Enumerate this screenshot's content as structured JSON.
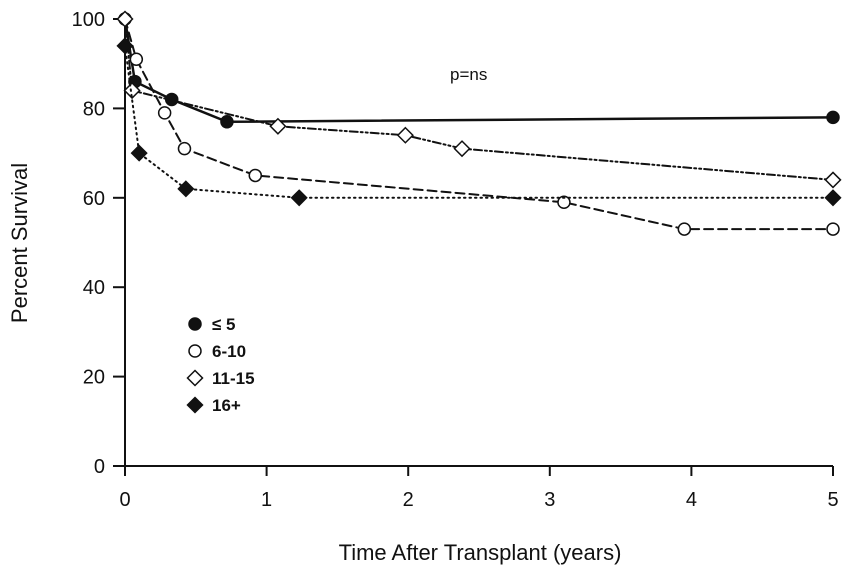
{
  "chart_data": {
    "type": "line",
    "title": "",
    "xlabel": "Time After Transplant (years)",
    "ylabel": "Percent Survival",
    "xlim": [
      0,
      5
    ],
    "ylim": [
      0,
      100
    ],
    "xticks": [
      0,
      1,
      2,
      3,
      4,
      5
    ],
    "yticks": [
      0,
      20,
      40,
      60,
      80,
      100
    ],
    "x_tick_labels": [
      "0",
      "1",
      "2",
      "3",
      "4",
      "5"
    ],
    "y_tick_labels": [
      "0",
      "20",
      "40",
      "60",
      "80",
      "100"
    ],
    "grid": false,
    "legend_position": "lower-left",
    "annotation": "p=ns",
    "series": [
      {
        "name": "≤ 5",
        "marker": "filled-circle",
        "line_style": "solid",
        "color": "#111111",
        "x": [
          0,
          0.07,
          0.33,
          0.72,
          5.0
        ],
        "y": [
          100,
          86,
          82,
          77,
          78
        ]
      },
      {
        "name": "6-10",
        "marker": "open-circle",
        "line_style": "dashed",
        "color": "#111111",
        "x": [
          0,
          0.08,
          0.28,
          0.42,
          0.92,
          3.1,
          3.95,
          5.0
        ],
        "y": [
          100,
          91,
          79,
          71,
          65,
          59,
          53,
          53
        ]
      },
      {
        "name": "11-15",
        "marker": "open-diamond",
        "line_style": "dash-dot-dot",
        "color": "#111111",
        "x": [
          0,
          0.05,
          1.08,
          1.98,
          2.38,
          5.0
        ],
        "y": [
          100,
          84,
          76,
          74,
          71,
          64
        ]
      },
      {
        "name": "16+",
        "marker": "filled-diamond",
        "line_style": "dotted",
        "color": "#111111",
        "x": [
          0,
          0.1,
          0.43,
          1.23,
          5.0
        ],
        "y": [
          94,
          70,
          62,
          60,
          60
        ]
      }
    ]
  }
}
